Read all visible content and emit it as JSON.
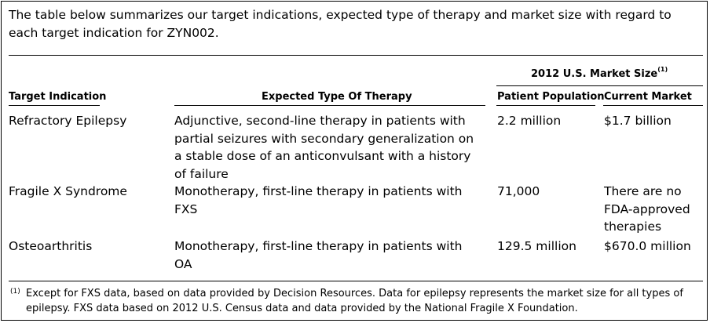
{
  "intro": "The table below summarizes our target indications, expected type of therapy and market size with regard to each target indication for ZYN002.",
  "group_header": {
    "label": "2012 U.S. Market Size",
    "sup": "(1)"
  },
  "headers": {
    "indication": "Target Indication",
    "therapy": "Expected Type Of Therapy",
    "population": "Patient Population",
    "market": "Current Market"
  },
  "rows": [
    {
      "indication": "Refractory Epilepsy",
      "therapy": [
        "Adjunctive, second-line therapy in patients with",
        "partial seizures with secondary generalization on",
        "a stable dose of an anticonvulsant with a history",
        "of failure"
      ],
      "population": "2.2 million",
      "market": [
        "$1.7 billion"
      ]
    },
    {
      "indication": "Fragile X Syndrome",
      "therapy": [
        "Monotherapy, first-line therapy in patients with",
        "FXS"
      ],
      "population": "71,000",
      "market": [
        "There are no",
        "FDA-approved",
        "therapies"
      ]
    },
    {
      "indication": "Osteoarthritis",
      "therapy": [
        "Monotherapy, first-line therapy in patients with",
        "OA"
      ],
      "population": "129.5 million",
      "market": [
        "$670.0 million"
      ]
    }
  ],
  "footnote": {
    "mark": "(1)",
    "text": "Except for FXS data, based on data provided by Decision Resources. Data for epilepsy represents the market size for all types of epilepsy. FXS data based on 2012 U.S. Census data and data provided by the National Fragile X Foundation."
  }
}
